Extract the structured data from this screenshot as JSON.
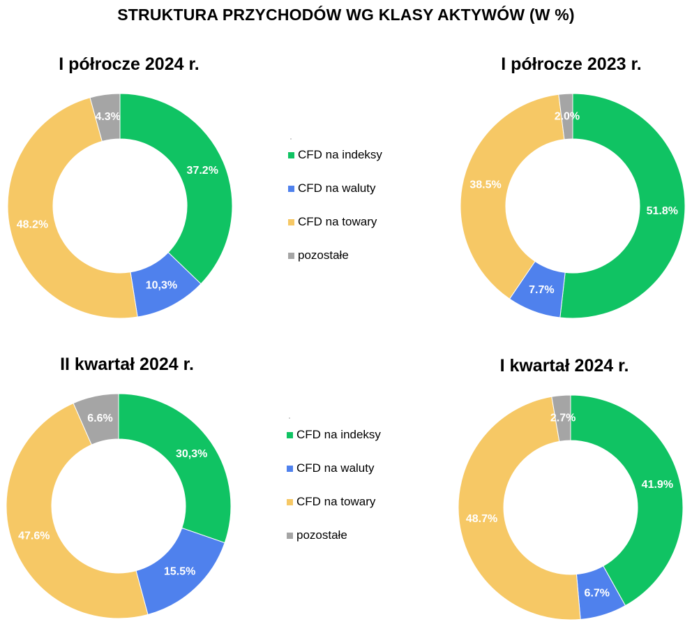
{
  "title": "STRUKTURA PRZYCHODÓW WG KLASY AKTYWÓW (W %)",
  "legend": {
    "items": [
      {
        "label": "CFD na indeksy",
        "color": "#10c363"
      },
      {
        "label": "CFD na waluty",
        "color": "#4f81ed"
      },
      {
        "label": "CFD na towary",
        "color": "#f6c865"
      },
      {
        "label": "pozostałe",
        "color": "#a5a5a5"
      }
    ]
  },
  "chart_data": [
    {
      "type": "pie",
      "title": "I półrocze 2024 r.",
      "categories": [
        "CFD na indeksy",
        "CFD na waluty",
        "CFD na towary",
        "pozostałe"
      ],
      "values": [
        37.2,
        10.3,
        48.2,
        4.3
      ],
      "labels": [
        "37.2%",
        "10,3%",
        "48.2%",
        "4.3%"
      ],
      "colors": [
        "#10c363",
        "#4f81ed",
        "#f6c865",
        "#a5a5a5"
      ],
      "legend": "center"
    },
    {
      "type": "pie",
      "title": "I półrocze 2023 r.",
      "categories": [
        "CFD na indeksy",
        "CFD na waluty",
        "CFD na towary",
        "pozostałe"
      ],
      "values": [
        51.8,
        7.7,
        38.5,
        2.0
      ],
      "labels": [
        "51.8%",
        "7.7%",
        "38.5%",
        "2.0%"
      ],
      "colors": [
        "#10c363",
        "#4f81ed",
        "#f6c865",
        "#a5a5a5"
      ],
      "legend": "center"
    },
    {
      "type": "pie",
      "title": "II kwartał 2024 r.",
      "categories": [
        "CFD na indeksy",
        "CFD na waluty",
        "CFD na towary",
        "pozostałe"
      ],
      "values": [
        30.3,
        15.5,
        47.6,
        6.6
      ],
      "labels": [
        "30,3%",
        "15.5%",
        "47.6%",
        "6.6%"
      ],
      "colors": [
        "#10c363",
        "#4f81ed",
        "#f6c865",
        "#a5a5a5"
      ],
      "legend": "center"
    },
    {
      "type": "pie",
      "title": "I kwartał 2024 r.",
      "categories": [
        "CFD na indeksy",
        "CFD na waluty",
        "CFD na towary",
        "pozostałe"
      ],
      "values": [
        41.9,
        6.7,
        48.7,
        2.7
      ],
      "labels": [
        "41.9%",
        "6.7%",
        "48.7%",
        "2.7%"
      ],
      "colors": [
        "#10c363",
        "#4f81ed",
        "#f6c865",
        "#a5a5a5"
      ],
      "legend": "center"
    }
  ]
}
